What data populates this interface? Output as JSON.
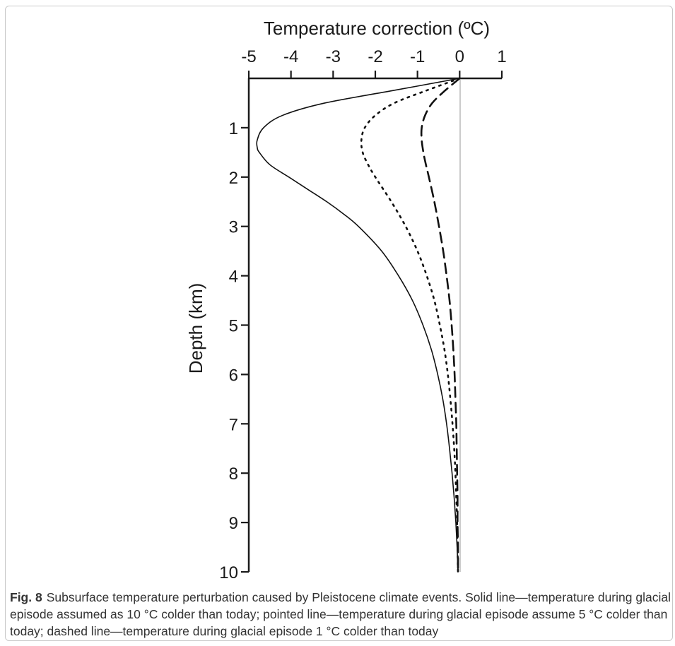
{
  "chart_data": {
    "type": "line",
    "title": "",
    "xlabel": "Temperature correction (ºC)",
    "ylabel": "Depth (km)",
    "xlim": [
      -5,
      1
    ],
    "ylim": [
      0,
      10
    ],
    "x_axis_position": "top",
    "y_inverted": true,
    "grid": false,
    "legend": "none",
    "x_ticks": [
      "-5",
      "-4",
      "-3",
      "-2",
      "-1",
      "0",
      "1"
    ],
    "y_ticks": [
      "1",
      "2",
      "3",
      "4",
      "5",
      "6",
      "7",
      "8",
      "9",
      "10"
    ],
    "reference_line_x": 0,
    "series": [
      {
        "style": "solid",
        "depth": [
          0,
          0.25,
          0.5,
          0.75,
          1.0,
          1.25,
          1.4,
          1.5,
          1.75,
          2.0,
          2.25,
          2.5,
          2.75,
          3.0,
          3.5,
          4.0,
          4.5,
          5.0,
          5.5,
          6.0,
          6.5,
          7.0,
          7.5,
          8.0,
          8.5,
          9.0,
          9.5,
          10.0
        ],
        "temperature": [
          0,
          -1.6,
          -3.2,
          -4.2,
          -4.65,
          -4.8,
          -4.8,
          -4.75,
          -4.5,
          -4.05,
          -3.6,
          -3.15,
          -2.75,
          -2.4,
          -1.85,
          -1.45,
          -1.12,
          -0.87,
          -0.67,
          -0.52,
          -0.4,
          -0.31,
          -0.24,
          -0.18,
          -0.13,
          -0.09,
          -0.06,
          -0.04
        ]
      },
      {
        "style": "dotted",
        "depth": [
          0,
          0.25,
          0.5,
          0.75,
          1.0,
          1.25,
          1.5,
          1.75,
          2.0,
          2.5,
          3.0,
          3.5,
          4.0,
          4.5,
          5.0,
          5.5,
          6.0,
          6.5,
          7.0,
          7.5,
          8.0,
          8.5,
          9.0,
          9.5,
          10.0
        ],
        "temperature": [
          0,
          -0.8,
          -1.55,
          -2.0,
          -2.25,
          -2.33,
          -2.3,
          -2.17,
          -2.0,
          -1.62,
          -1.28,
          -1.0,
          -0.78,
          -0.6,
          -0.47,
          -0.36,
          -0.28,
          -0.22,
          -0.17,
          -0.13,
          -0.1,
          -0.08,
          -0.06,
          -0.05,
          -0.04
        ]
      },
      {
        "style": "dashed",
        "depth": [
          0,
          0.25,
          0.5,
          0.75,
          1.0,
          1.25,
          1.5,
          1.75,
          2.0,
          2.5,
          3.0,
          3.5,
          4.0,
          4.5,
          5.0,
          5.5,
          6.0,
          6.5,
          7.0,
          7.5,
          8.0,
          8.5,
          9.0,
          9.5,
          10.0
        ],
        "temperature": [
          0,
          -0.35,
          -0.65,
          -0.82,
          -0.9,
          -0.9,
          -0.86,
          -0.8,
          -0.73,
          -0.6,
          -0.49,
          -0.39,
          -0.31,
          -0.24,
          -0.19,
          -0.15,
          -0.12,
          -0.1,
          -0.08,
          -0.07,
          -0.06,
          -0.05,
          -0.05,
          -0.04,
          -0.04
        ]
      }
    ]
  },
  "caption": {
    "label": "Fig. 8",
    "text": "Subsurface temperature perturbation caused by Pleistocene climate events. Solid line—temperature during glacial episode assumed as 10 °C colder than today; pointed line—temperature during glacial episode assume 5 °C colder than today; dashed line—temperature during glacial episode 1 °C colder than today"
  }
}
